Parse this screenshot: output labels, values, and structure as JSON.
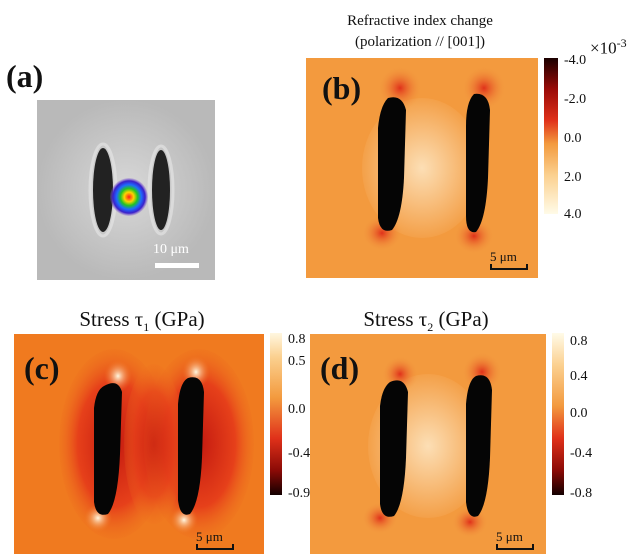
{
  "panels": {
    "a": {
      "label": "(a)",
      "scale_bar": "10 μm"
    },
    "b": {
      "label": "(b)",
      "title_line1": "Refractive index change",
      "title_line2": "(polarization // [001])",
      "multiplier": "×10",
      "multiplier_exp": "-3",
      "colorbar_ticks": [
        "-4.0",
        "-2.0",
        "0.0",
        "2.0",
        "4.0"
      ],
      "scale_bar": "5 μm"
    },
    "c": {
      "label": "(c)",
      "title_prefix": "Stress τ",
      "title_sub": "1",
      "title_suffix": " (GPa)",
      "colorbar_ticks": [
        "0.8",
        "0.5",
        "0.0",
        "-0.4",
        "-0.9"
      ],
      "scale_bar": "5 μm"
    },
    "d": {
      "label": "(d)",
      "title_prefix": "Stress τ",
      "title_sub": "2",
      "title_suffix": " (GPa)",
      "colorbar_ticks": [
        "0.8",
        "0.4",
        "0.0",
        "-0.4",
        "-0.8"
      ],
      "scale_bar": "5 μm"
    }
  },
  "colors": {
    "map_orange": "#f07a1f",
    "map_dark": "#000000",
    "map_light": "#fff7e0",
    "map_red": "#e0311a"
  }
}
